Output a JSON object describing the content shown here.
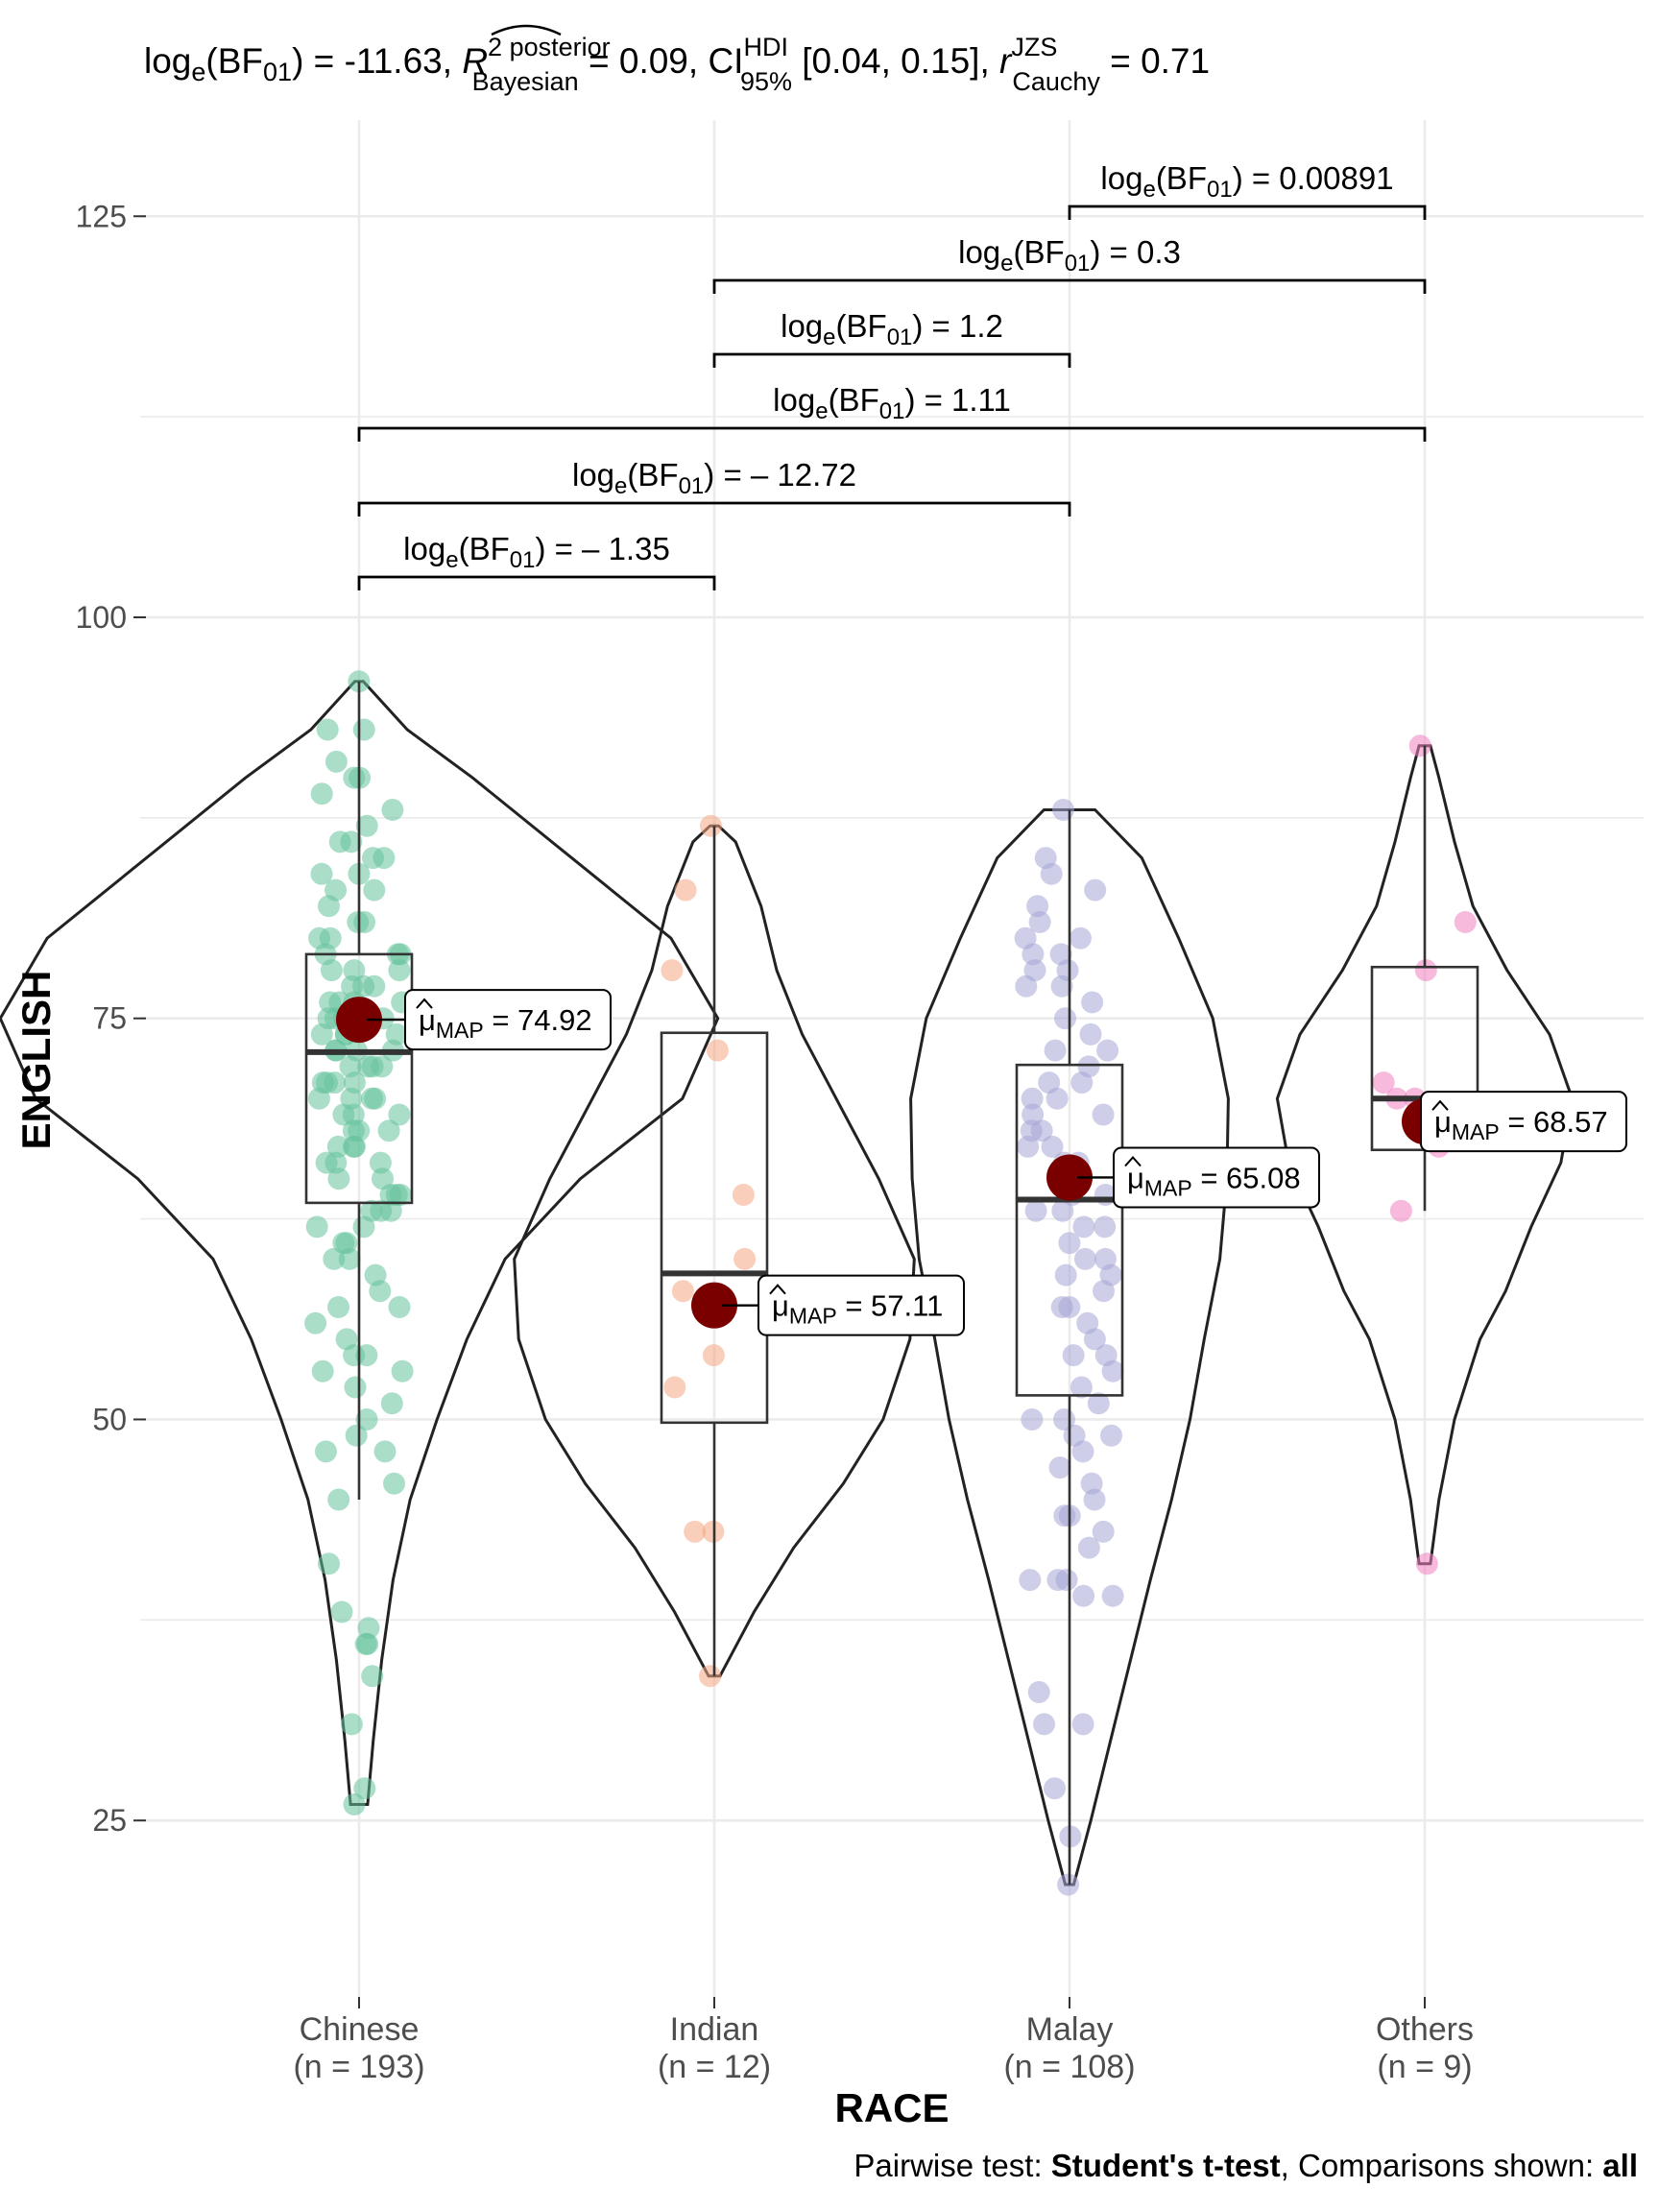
{
  "subtitle": {
    "bf": "-11.63",
    "r2": "0.09",
    "ci": "[0.04, 0.15]",
    "r_cauchy": "0.71"
  },
  "caption": {
    "prefix": "Pairwise test: ",
    "test": "Student's t-test",
    "middle": ", Comparisons shown: ",
    "shown": "all"
  },
  "chart_data": {
    "type": "violin-box-scatter",
    "xlabel": "RACE",
    "ylabel": "ENGLISH",
    "ylim": [
      14,
      131
    ],
    "yticks": [
      25,
      50,
      75,
      100,
      125
    ],
    "grid": true,
    "categories": [
      "Chinese",
      "Indian",
      "Malay",
      "Others"
    ],
    "n_labels": [
      "(n = 193)",
      "(n = 12)",
      "(n = 108)",
      "(n = 9)"
    ],
    "colors": [
      "#66c29d",
      "#f4a582",
      "#a6a6d5",
      "#f07fc0"
    ],
    "mean_color": "#7a0000",
    "boxes": [
      {
        "q1": 63.5,
        "median": 72.9,
        "q3": 79.0,
        "min": 45.0,
        "max": 96.0
      },
      {
        "q1": 49.8,
        "median": 59.1,
        "q3": 74.1,
        "min": 34.0,
        "max": 87.0
      },
      {
        "q1": 51.5,
        "median": 63.7,
        "q3": 72.1,
        "min": 21.0,
        "max": 88.0
      },
      {
        "q1": 66.8,
        "median": 70.0,
        "q3": 78.2,
        "min": 63.0,
        "max": 92.0
      }
    ],
    "violins": [
      {
        "ymin": 26,
        "ymax": 96,
        "profile": [
          [
            26,
            0.6
          ],
          [
            30,
            1.0
          ],
          [
            35,
            1.6
          ],
          [
            40,
            2.4
          ],
          [
            45,
            3.6
          ],
          [
            50,
            5.5
          ],
          [
            55,
            7.6
          ],
          [
            60,
            10.3
          ],
          [
            65,
            15.6
          ],
          [
            70,
            22.8
          ],
          [
            75,
            25.3
          ],
          [
            80,
            22.0
          ],
          [
            85,
            15.0
          ],
          [
            90,
            8.0
          ],
          [
            93,
            3.4
          ],
          [
            96,
            0.3
          ]
        ]
      },
      {
        "ymin": 34,
        "ymax": 87,
        "profile": [
          [
            34,
            0.4
          ],
          [
            38,
            2.8
          ],
          [
            42,
            5.6
          ],
          [
            46,
            9.1
          ],
          [
            50,
            11.9
          ],
          [
            55,
            13.8
          ],
          [
            60,
            14.1
          ],
          [
            65,
            11.6
          ],
          [
            70,
            8.6
          ],
          [
            74,
            6.2
          ],
          [
            78,
            4.4
          ],
          [
            82,
            3.3
          ],
          [
            86,
            1.5
          ],
          [
            87,
            0.3
          ]
        ]
      },
      {
        "ymin": 21,
        "ymax": 88,
        "profile": [
          [
            21,
            0.3
          ],
          [
            25,
            1.5
          ],
          [
            30,
            2.9
          ],
          [
            35,
            4.3
          ],
          [
            40,
            5.7
          ],
          [
            45,
            7.2
          ],
          [
            50,
            8.5
          ],
          [
            55,
            9.5
          ],
          [
            60,
            10.6
          ],
          [
            65,
            11.1
          ],
          [
            70,
            11.2
          ],
          [
            75,
            10.1
          ],
          [
            80,
            7.7
          ],
          [
            85,
            5.1
          ],
          [
            88,
            1.8
          ]
        ]
      },
      {
        "ymin": 41,
        "ymax": 92,
        "profile": [
          [
            41,
            0.4
          ],
          [
            45,
            1.0
          ],
          [
            50,
            2.1
          ],
          [
            55,
            3.9
          ],
          [
            58,
            5.7
          ],
          [
            62,
            7.5
          ],
          [
            66,
            9.6
          ],
          [
            70,
            10.4
          ],
          [
            74,
            8.8
          ],
          [
            78,
            5.8
          ],
          [
            82,
            3.4
          ],
          [
            86,
            2.1
          ],
          [
            90,
            1.0
          ],
          [
            92,
            0.4
          ]
        ]
      }
    ],
    "points": [
      [
        96,
        93,
        93,
        91,
        90,
        90,
        89,
        88,
        87,
        86,
        86,
        85,
        85,
        84,
        84,
        83,
        83,
        82,
        81,
        81,
        80,
        80,
        79,
        79,
        79,
        78,
        78,
        78,
        77,
        77,
        77,
        76,
        76,
        76,
        76,
        75,
        75,
        75,
        75,
        75,
        74,
        74,
        74,
        74,
        73,
        73,
        73,
        73,
        72,
        72,
        72,
        72,
        71,
        71,
        71,
        71,
        70,
        70,
        70,
        70,
        69,
        69,
        69,
        68,
        68,
        68,
        67,
        67,
        67,
        66,
        66,
        66,
        65,
        65,
        64,
        64,
        64,
        63,
        63,
        63,
        62,
        62,
        61,
        61,
        60,
        60,
        59,
        58,
        57,
        57,
        56,
        55,
        54,
        54,
        53,
        53,
        52,
        51,
        50,
        49,
        48,
        48,
        46,
        45,
        41,
        38,
        37,
        36,
        36,
        34,
        31,
        27,
        26
      ],
      [
        87,
        83,
        78,
        73,
        64,
        60,
        58,
        54,
        52,
        43,
        43,
        34
      ],
      [
        88,
        85,
        84,
        83,
        82,
        81,
        80,
        80,
        79,
        79,
        78,
        78,
        77,
        77,
        76,
        75,
        74,
        73,
        73,
        72,
        71,
        71,
        70,
        70,
        69,
        69,
        68,
        68,
        67,
        67,
        66,
        66,
        65,
        65,
        64,
        64,
        63,
        63,
        62,
        62,
        61,
        60,
        60,
        59,
        59,
        58,
        57,
        57,
        56,
        55,
        54,
        54,
        53,
        52,
        51,
        50,
        50,
        49,
        49,
        48,
        47,
        46,
        45,
        44,
        44,
        43,
        42,
        40,
        40,
        40,
        39,
        39,
        33,
        31,
        31,
        27,
        24,
        21
      ],
      [
        92,
        81,
        78,
        71,
        70,
        70,
        67,
        63,
        41
      ]
    ],
    "means": [
      74.92,
      57.11,
      65.08,
      68.57
    ],
    "mean_labels": [
      "74.92",
      "57.11",
      "65.08",
      "68.57"
    ],
    "comparisons": [
      {
        "from": 0,
        "to": 1,
        "label": "– 1.35"
      },
      {
        "from": 0,
        "to": 2,
        "label": "– 12.72"
      },
      {
        "from": 0,
        "to": 3,
        "label": "1.11"
      },
      {
        "from": 1,
        "to": 2,
        "label": "1.2"
      },
      {
        "from": 1,
        "to": 3,
        "label": "0.3"
      },
      {
        "from": 2,
        "to": 3,
        "label": "0.00891"
      }
    ]
  }
}
